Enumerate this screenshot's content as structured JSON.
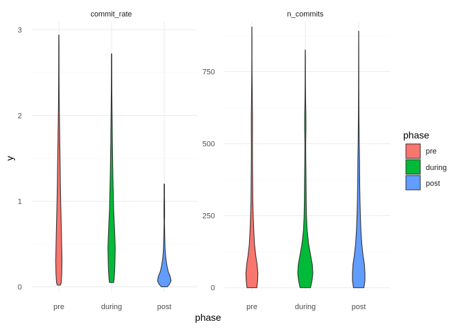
{
  "chart_data": {
    "type": "violin",
    "xlabel": "phase",
    "ylabel": "y",
    "categories": [
      "pre",
      "during",
      "post"
    ],
    "legend": {
      "title": "phase",
      "position": "right",
      "entries": [
        {
          "label": "pre",
          "color": "#F8766D"
        },
        {
          "label": "during",
          "color": "#00BA38"
        },
        {
          "label": "post",
          "color": "#619CFF"
        }
      ]
    },
    "grid": true,
    "panels": [
      {
        "title": "commit_rate",
        "ylim": [
          -0.06,
          3.1
        ],
        "yticks": [
          0,
          1,
          2,
          3
        ],
        "tick_labels": [
          "0",
          "1",
          "2",
          "3"
        ],
        "violins": [
          {
            "category": "pre",
            "profile": [
              [
                0.02,
                0.06
              ],
              [
                0.05,
                0.09
              ],
              [
                0.15,
                0.11
              ],
              [
                0.3,
                0.12
              ],
              [
                0.45,
                0.11
              ],
              [
                0.6,
                0.1
              ],
              [
                0.8,
                0.085
              ],
              [
                1.0,
                0.07
              ],
              [
                1.2,
                0.058
              ],
              [
                1.4,
                0.05
              ],
              [
                1.6,
                0.04
              ],
              [
                1.8,
                0.03
              ],
              [
                2.0,
                0.02
              ],
              [
                2.2,
                0.012
              ],
              [
                2.4,
                0.009
              ],
              [
                2.6,
                0.007
              ],
              [
                2.8,
                0.006
              ],
              [
                2.94,
                0.004
              ]
            ]
          },
          {
            "category": "during",
            "profile": [
              [
                0.05,
                0.08
              ],
              [
                0.1,
                0.1
              ],
              [
                0.2,
                0.12
              ],
              [
                0.3,
                0.13
              ],
              [
                0.45,
                0.14
              ],
              [
                0.55,
                0.13
              ],
              [
                0.7,
                0.11
              ],
              [
                0.9,
                0.08
              ],
              [
                1.1,
                0.065
              ],
              [
                1.3,
                0.05
              ],
              [
                1.5,
                0.04
              ],
              [
                1.7,
                0.03
              ],
              [
                1.9,
                0.024
              ],
              [
                2.1,
                0.016
              ],
              [
                2.3,
                0.01
              ],
              [
                2.5,
                0.008
              ],
              [
                2.72,
                0.006
              ]
            ]
          },
          {
            "category": "post",
            "profile": [
              [
                0.0,
                0.11
              ],
              [
                0.03,
                0.2
              ],
              [
                0.07,
                0.26
              ],
              [
                0.12,
                0.23
              ],
              [
                0.18,
                0.15
              ],
              [
                0.25,
                0.1
              ],
              [
                0.32,
                0.065
              ],
              [
                0.38,
                0.045
              ],
              [
                0.45,
                0.03
              ],
              [
                0.55,
                0.022
              ],
              [
                0.65,
                0.014
              ],
              [
                0.75,
                0.008
              ],
              [
                0.85,
                0.014
              ],
              [
                0.95,
                0.012
              ],
              [
                1.05,
                0.008
              ],
              [
                1.2,
                0.008
              ]
            ]
          }
        ]
      },
      {
        "title": "n_commits",
        "ylim": [
          -15,
          925
        ],
        "yticks": [
          0,
          250,
          500,
          750
        ],
        "tick_labels": [
          "0",
          "250",
          "500",
          "750"
        ],
        "violins": [
          {
            "category": "pre",
            "profile": [
              [
                0,
                0.19
              ],
              [
                25,
                0.22
              ],
              [
                50,
                0.23
              ],
              [
                80,
                0.2
              ],
              [
                110,
                0.15
              ],
              [
                150,
                0.1
              ],
              [
                200,
                0.07
              ],
              [
                250,
                0.05
              ],
              [
                300,
                0.035
              ],
              [
                350,
                0.03
              ],
              [
                400,
                0.025
              ],
              [
                450,
                0.02
              ],
              [
                500,
                0.02
              ],
              [
                550,
                0.023
              ],
              [
                600,
                0.022
              ],
              [
                650,
                0.015
              ],
              [
                700,
                0.01
              ],
              [
                750,
                0.006
              ],
              [
                800,
                0.004
              ],
              [
                850,
                0.004
              ],
              [
                905,
                0.002
              ]
            ]
          },
          {
            "category": "during",
            "profile": [
              [
                0,
                0.2
              ],
              [
                25,
                0.26
              ],
              [
                50,
                0.29
              ],
              [
                80,
                0.27
              ],
              [
                110,
                0.21
              ],
              [
                150,
                0.13
              ],
              [
                200,
                0.07
              ],
              [
                250,
                0.045
              ],
              [
                300,
                0.035
              ],
              [
                350,
                0.03
              ],
              [
                400,
                0.025
              ],
              [
                450,
                0.018
              ],
              [
                500,
                0.015
              ],
              [
                550,
                0.025
              ],
              [
                600,
                0.024
              ],
              [
                650,
                0.012
              ],
              [
                700,
                0.008
              ],
              [
                750,
                0.006
              ],
              [
                800,
                0.005
              ],
              [
                825,
                0.004
              ]
            ]
          },
          {
            "category": "post",
            "profile": [
              [
                0,
                0.2
              ],
              [
                25,
                0.24
              ],
              [
                50,
                0.24
              ],
              [
                80,
                0.22
              ],
              [
                110,
                0.17
              ],
              [
                150,
                0.12
              ],
              [
                200,
                0.085
              ],
              [
                250,
                0.065
              ],
              [
                300,
                0.05
              ],
              [
                350,
                0.04
              ],
              [
                400,
                0.035
              ],
              [
                450,
                0.03
              ],
              [
                500,
                0.02
              ],
              [
                550,
                0.015
              ],
              [
                600,
                0.01
              ],
              [
                650,
                0.008
              ],
              [
                700,
                0.006
              ],
              [
                750,
                0.005
              ],
              [
                800,
                0.004
              ],
              [
                850,
                0.003
              ],
              [
                890,
                0.002
              ]
            ]
          }
        ]
      }
    ]
  }
}
